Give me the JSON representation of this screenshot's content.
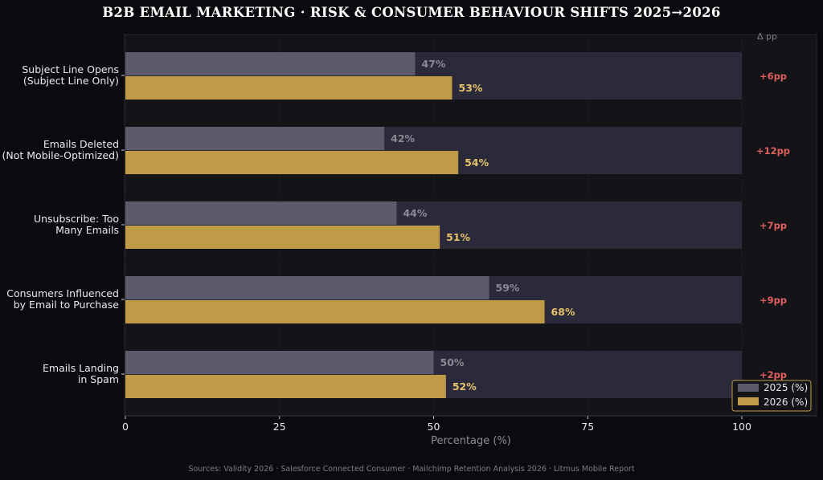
{
  "chart_data": {
    "type": "bar",
    "orientation": "horizontal",
    "title": "B2B EMAIL MARKETING  ·  RISK & CONSUMER BEHAVIOUR SHIFTS 2025→2026",
    "xlabel": "Percentage (%)",
    "xlim": [
      0,
      100
    ],
    "xticks": [
      0,
      25,
      50,
      75,
      100
    ],
    "grid": true,
    "legend_position": "bottom-right",
    "categories": [
      [
        "Subject Line Opens",
        "(Subject Line Only)"
      ],
      [
        "Emails Deleted",
        "(Not Mobile-Optimized)"
      ],
      [
        "Unsubscribe: Too",
        "Many Emails"
      ],
      [
        "Consumers Influenced",
        "by Email to Purchase"
      ],
      [
        "Emails Landing",
        "in Spam"
      ]
    ],
    "series": [
      {
        "name": "2025 (%)",
        "color": "#5d5b6b",
        "values": [
          47,
          42,
          44,
          59,
          50
        ],
        "labels": [
          "47%",
          "42%",
          "44%",
          "59%",
          "50%"
        ]
      },
      {
        "name": "2026 (%)",
        "color": "#bf9b48",
        "values": [
          53,
          54,
          51,
          68,
          52
        ],
        "labels": [
          "53%",
          "54%",
          "51%",
          "68%",
          "52%"
        ]
      }
    ],
    "delta_header": "Δ pp",
    "deltas": [
      "+6pp",
      "+12pp",
      "+7pp",
      "+9pp",
      "+2pp"
    ],
    "source": "Sources: Validity 2026 · Salesforce Connected Consumer · Mailchimp Retention Analysis 2026 · Litmus Mobile Report"
  },
  "colors": {
    "background": "#0b0b0f",
    "plot_background": "#131318",
    "track": "#2b2a3a",
    "delta": "#e0605e",
    "legend_border": "#bf9b48"
  }
}
